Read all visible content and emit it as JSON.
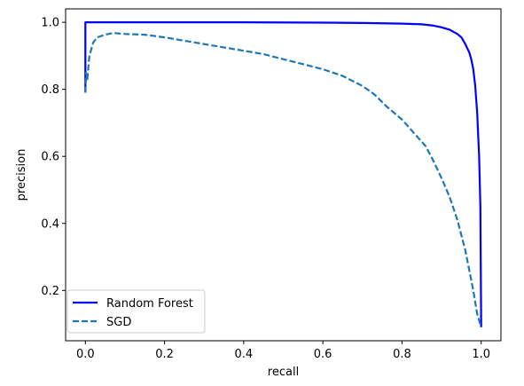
{
  "chart_data": {
    "type": "line",
    "title": "",
    "xlabel": "recall",
    "ylabel": "precision",
    "xlim": [
      -0.05,
      1.05
    ],
    "ylim": [
      0.05,
      1.04
    ],
    "xticks": [
      "0.0",
      "0.2",
      "0.4",
      "0.6",
      "0.8",
      "1.0"
    ],
    "yticks": [
      "0.2",
      "0.4",
      "0.6",
      "0.8",
      "1.0"
    ],
    "grid": false,
    "legend_position": "lower-left",
    "series": [
      {
        "name": "Random Forest",
        "color": "#0000ff",
        "style": "solid",
        "x": [
          0.0,
          0.0,
          0.05,
          0.2,
          0.4,
          0.6,
          0.7,
          0.8,
          0.85,
          0.88,
          0.9,
          0.92,
          0.94,
          0.95,
          0.96,
          0.97,
          0.975,
          0.98,
          0.985,
          0.99,
          0.995,
          0.998,
          1.0
        ],
        "y": [
          0.79,
          1.0,
          1.0,
          1.0,
          1.0,
          0.999,
          0.998,
          0.996,
          0.994,
          0.99,
          0.985,
          0.978,
          0.965,
          0.955,
          0.935,
          0.91,
          0.89,
          0.86,
          0.81,
          0.73,
          0.6,
          0.45,
          0.09
        ]
      },
      {
        "name": "SGD",
        "color": "#1f77b4",
        "style": "dashed",
        "x": [
          0.0,
          0.002,
          0.005,
          0.01,
          0.02,
          0.03,
          0.05,
          0.07,
          0.1,
          0.15,
          0.2,
          0.25,
          0.3,
          0.35,
          0.4,
          0.45,
          0.5,
          0.55,
          0.6,
          0.65,
          0.7,
          0.73,
          0.76,
          0.8,
          0.83,
          0.86,
          0.88,
          0.9,
          0.92,
          0.94,
          0.96,
          0.97,
          0.98,
          0.99,
          1.0
        ],
        "y": [
          0.79,
          0.85,
          0.83,
          0.9,
          0.94,
          0.955,
          0.963,
          0.968,
          0.965,
          0.963,
          0.955,
          0.945,
          0.935,
          0.925,
          0.915,
          0.905,
          0.89,
          0.875,
          0.86,
          0.84,
          0.81,
          0.785,
          0.75,
          0.71,
          0.67,
          0.63,
          0.585,
          0.535,
          0.48,
          0.41,
          0.32,
          0.26,
          0.2,
          0.13,
          0.09
        ]
      }
    ]
  }
}
